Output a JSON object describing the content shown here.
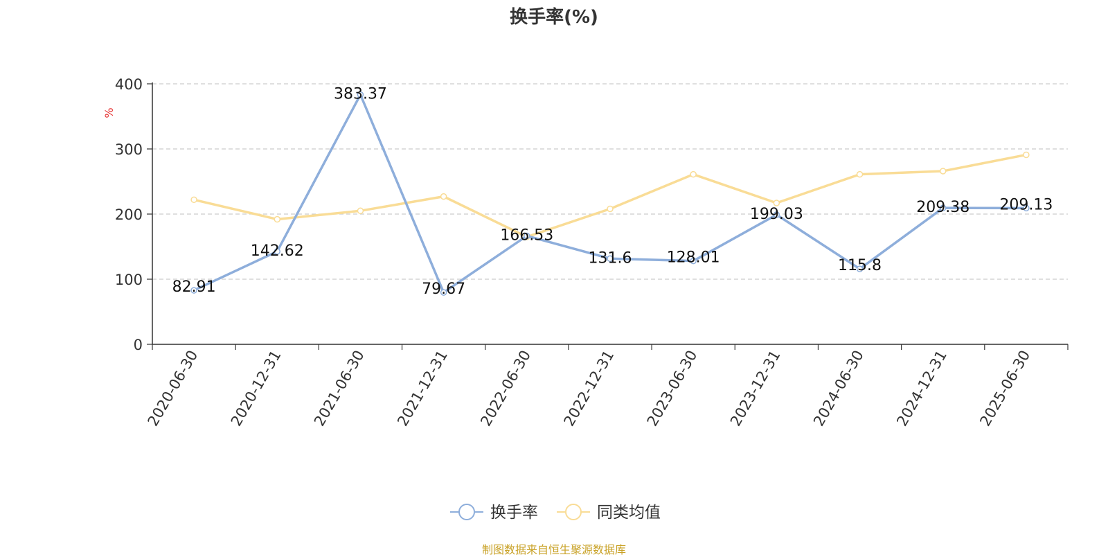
{
  "chart_data": {
    "type": "line",
    "title": "换手率(%)",
    "ylabel": "%",
    "ylim": [
      0,
      400
    ],
    "yticks": [
      0,
      100,
      200,
      300,
      400
    ],
    "grid": true,
    "legend_position": "bottom",
    "categories": [
      "2020-06-30",
      "2020-12-31",
      "2021-06-30",
      "2021-12-31",
      "2022-06-30",
      "2022-12-31",
      "2023-06-30",
      "2023-12-31",
      "2024-06-30",
      "2024-12-31",
      "2025-06-30"
    ],
    "series": [
      {
        "name": "换手率",
        "color": "#8eaedb",
        "values": [
          82.91,
          142.62,
          383.37,
          79.67,
          166.53,
          131.6,
          128.01,
          199.03,
          115.8,
          209.38,
          209.13
        ],
        "labels": [
          "82.91",
          "142.62",
          "383.37",
          "79.67",
          "166.53",
          "131.6",
          "128.01",
          "199.03",
          "115.8",
          "209.38",
          "209.13"
        ]
      },
      {
        "name": "同类均值",
        "color": "#f9dc96",
        "values": [
          222,
          192,
          205,
          227,
          165,
          208,
          261,
          217,
          261,
          266,
          291
        ]
      }
    ]
  },
  "source_note": "制图数据来自恒生聚源数据库"
}
